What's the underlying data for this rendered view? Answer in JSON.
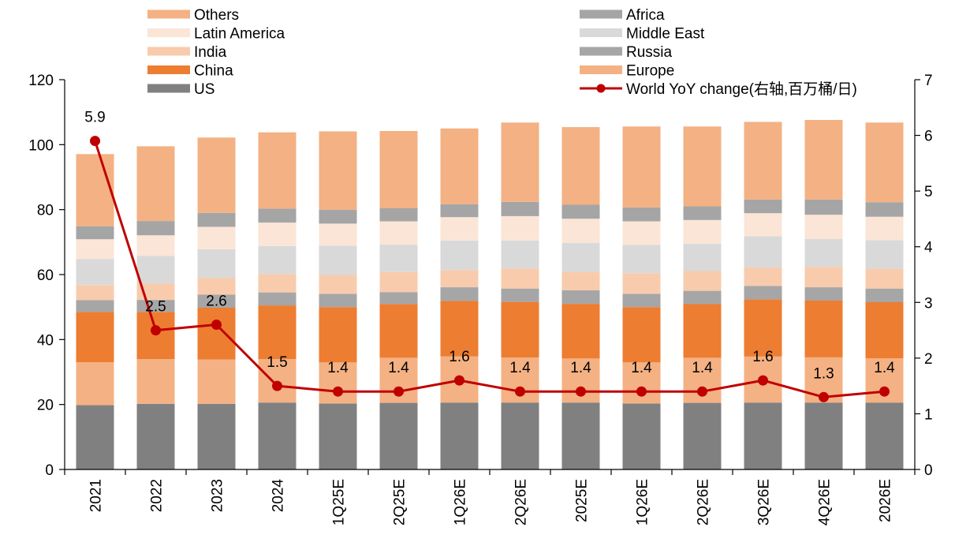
{
  "chart_data": {
    "type": "bar",
    "stacked": true,
    "categories": [
      "2021",
      "2022",
      "2023",
      "2024",
      "1Q25E",
      "2Q25E",
      "1Q26E",
      "2Q26E",
      "2025E",
      "1Q26E",
      "2Q26E",
      "3Q26E",
      "4Q26E",
      "2026E"
    ],
    "series": [
      {
        "name": "US",
        "color": "#808080",
        "values": [
          19.8,
          20.2,
          20.2,
          20.6,
          20.3,
          20.5,
          20.6,
          20.6,
          20.6,
          20.3,
          20.5,
          20.6,
          20.6,
          20.6
        ]
      },
      {
        "name": "Europe",
        "color": "#F4B183",
        "values": [
          13.2,
          13.8,
          13.7,
          13.4,
          12.7,
          13.9,
          14.2,
          13.9,
          13.6,
          12.7,
          13.9,
          14.2,
          13.9,
          13.6
        ]
      },
      {
        "name": "China",
        "color": "#ED7D31",
        "values": [
          15.5,
          14.5,
          15.9,
          16.5,
          17.0,
          16.5,
          17.1,
          17.1,
          16.8,
          17.0,
          16.5,
          17.6,
          17.5,
          17.3
        ]
      },
      {
        "name": "Russia",
        "color": "#A6A6A6",
        "values": [
          3.6,
          3.7,
          4.0,
          4.0,
          4.1,
          3.7,
          4.2,
          4.1,
          4.2,
          4.1,
          4.1,
          4.1,
          4.1,
          4.2
        ]
      },
      {
        "name": "India",
        "color": "#F8CBAD",
        "values": [
          4.7,
          5.1,
          5.2,
          5.7,
          5.8,
          6.2,
          5.3,
          6.2,
          5.6,
          6.3,
          6.1,
          5.7,
          6.3,
          6.1
        ]
      },
      {
        "name": "Middle East",
        "color": "#D9D9D9",
        "values": [
          8.0,
          8.4,
          8.8,
          8.6,
          9.0,
          8.4,
          9.1,
          8.6,
          9.0,
          8.7,
          8.4,
          9.6,
          8.6,
          8.8
        ]
      },
      {
        "name": "Latin America",
        "color": "#FBE5D6",
        "values": [
          6.1,
          6.4,
          6.9,
          7.2,
          6.8,
          7.2,
          7.2,
          7.5,
          7.4,
          7.3,
          7.3,
          7.1,
          7.4,
          7.2
        ]
      },
      {
        "name": "Africa",
        "color": "#A5A5A5",
        "values": [
          4.0,
          4.4,
          4.3,
          4.3,
          4.3,
          4.0,
          4.0,
          4.4,
          4.3,
          4.3,
          4.2,
          4.2,
          4.7,
          4.5
        ]
      },
      {
        "name": "Others",
        "color": "#F4B183",
        "values": [
          22.2,
          23.0,
          23.2,
          23.5,
          24.1,
          23.8,
          23.3,
          24.4,
          23.9,
          24.9,
          24.6,
          23.9,
          24.5,
          24.5
        ]
      }
    ],
    "line": {
      "name": "World YoY change(右轴,百万桶/日)",
      "color": "#C00000",
      "axis": "right",
      "values": [
        5.9,
        2.5,
        2.6,
        1.5,
        1.4,
        1.4,
        1.6,
        1.4,
        1.4,
        1.4,
        1.4,
        1.6,
        1.3,
        1.4
      ],
      "labels": [
        "5.9",
        "2.5",
        "2.6",
        "1.5",
        "1.4",
        "1.4",
        "1.6",
        "1.4",
        "1.4",
        "1.4",
        "1.4",
        "1.6",
        "1.3",
        "1.4"
      ]
    },
    "ylim": [
      0,
      120
    ],
    "yticks": [
      "0",
      "20",
      "40",
      "60",
      "80",
      "100",
      "120"
    ],
    "y2lim": [
      0,
      7
    ],
    "y2ticks": [
      "0",
      "1",
      "2",
      "3",
      "4",
      "5",
      "6",
      "7"
    ],
    "grid": false,
    "legend_position": "top",
    "legend_order": [
      "Others",
      "Latin America",
      "India",
      "China",
      "US",
      "Africa",
      "Middle East",
      "Russia",
      "Europe",
      "World YoY change(右轴,百万桶/日)"
    ]
  }
}
